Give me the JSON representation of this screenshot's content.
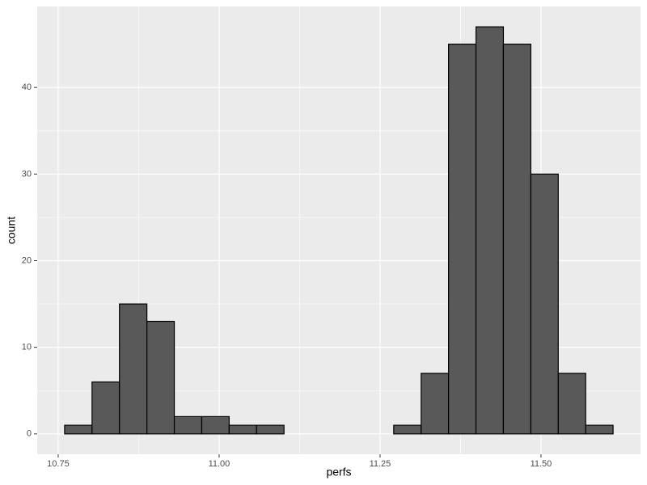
{
  "chart_data": {
    "type": "histogram",
    "x_label": "perfs",
    "y_label": "count",
    "bins": [
      10.76,
      10.8026,
      10.8452,
      10.8878,
      10.9304,
      10.973,
      11.0156,
      11.0582,
      11.1008,
      11.1434,
      11.186,
      11.2286,
      11.2712,
      11.3138,
      11.3564,
      11.399,
      11.4416,
      11.4842,
      11.5268,
      11.5694,
      11.612
    ],
    "values": [
      1,
      6,
      15,
      13,
      2,
      2,
      1,
      1,
      0,
      0,
      0,
      0,
      1,
      7,
      45,
      47,
      45,
      30,
      7,
      1
    ],
    "color": "#595959",
    "edge_color": "#000000",
    "xlim": [
      10.7174,
      11.6546
    ],
    "xticks": [
      10.75,
      {
        "value": 11,
        "label": "11.00"
      },
      11.25,
      {
        "value": 11.5,
        "label": "11.50"
      }
    ],
    "ylim": [
      -2.35,
      49.35
    ],
    "yticks": [
      0,
      10,
      20,
      30,
      40
    ],
    "grid": true
  }
}
